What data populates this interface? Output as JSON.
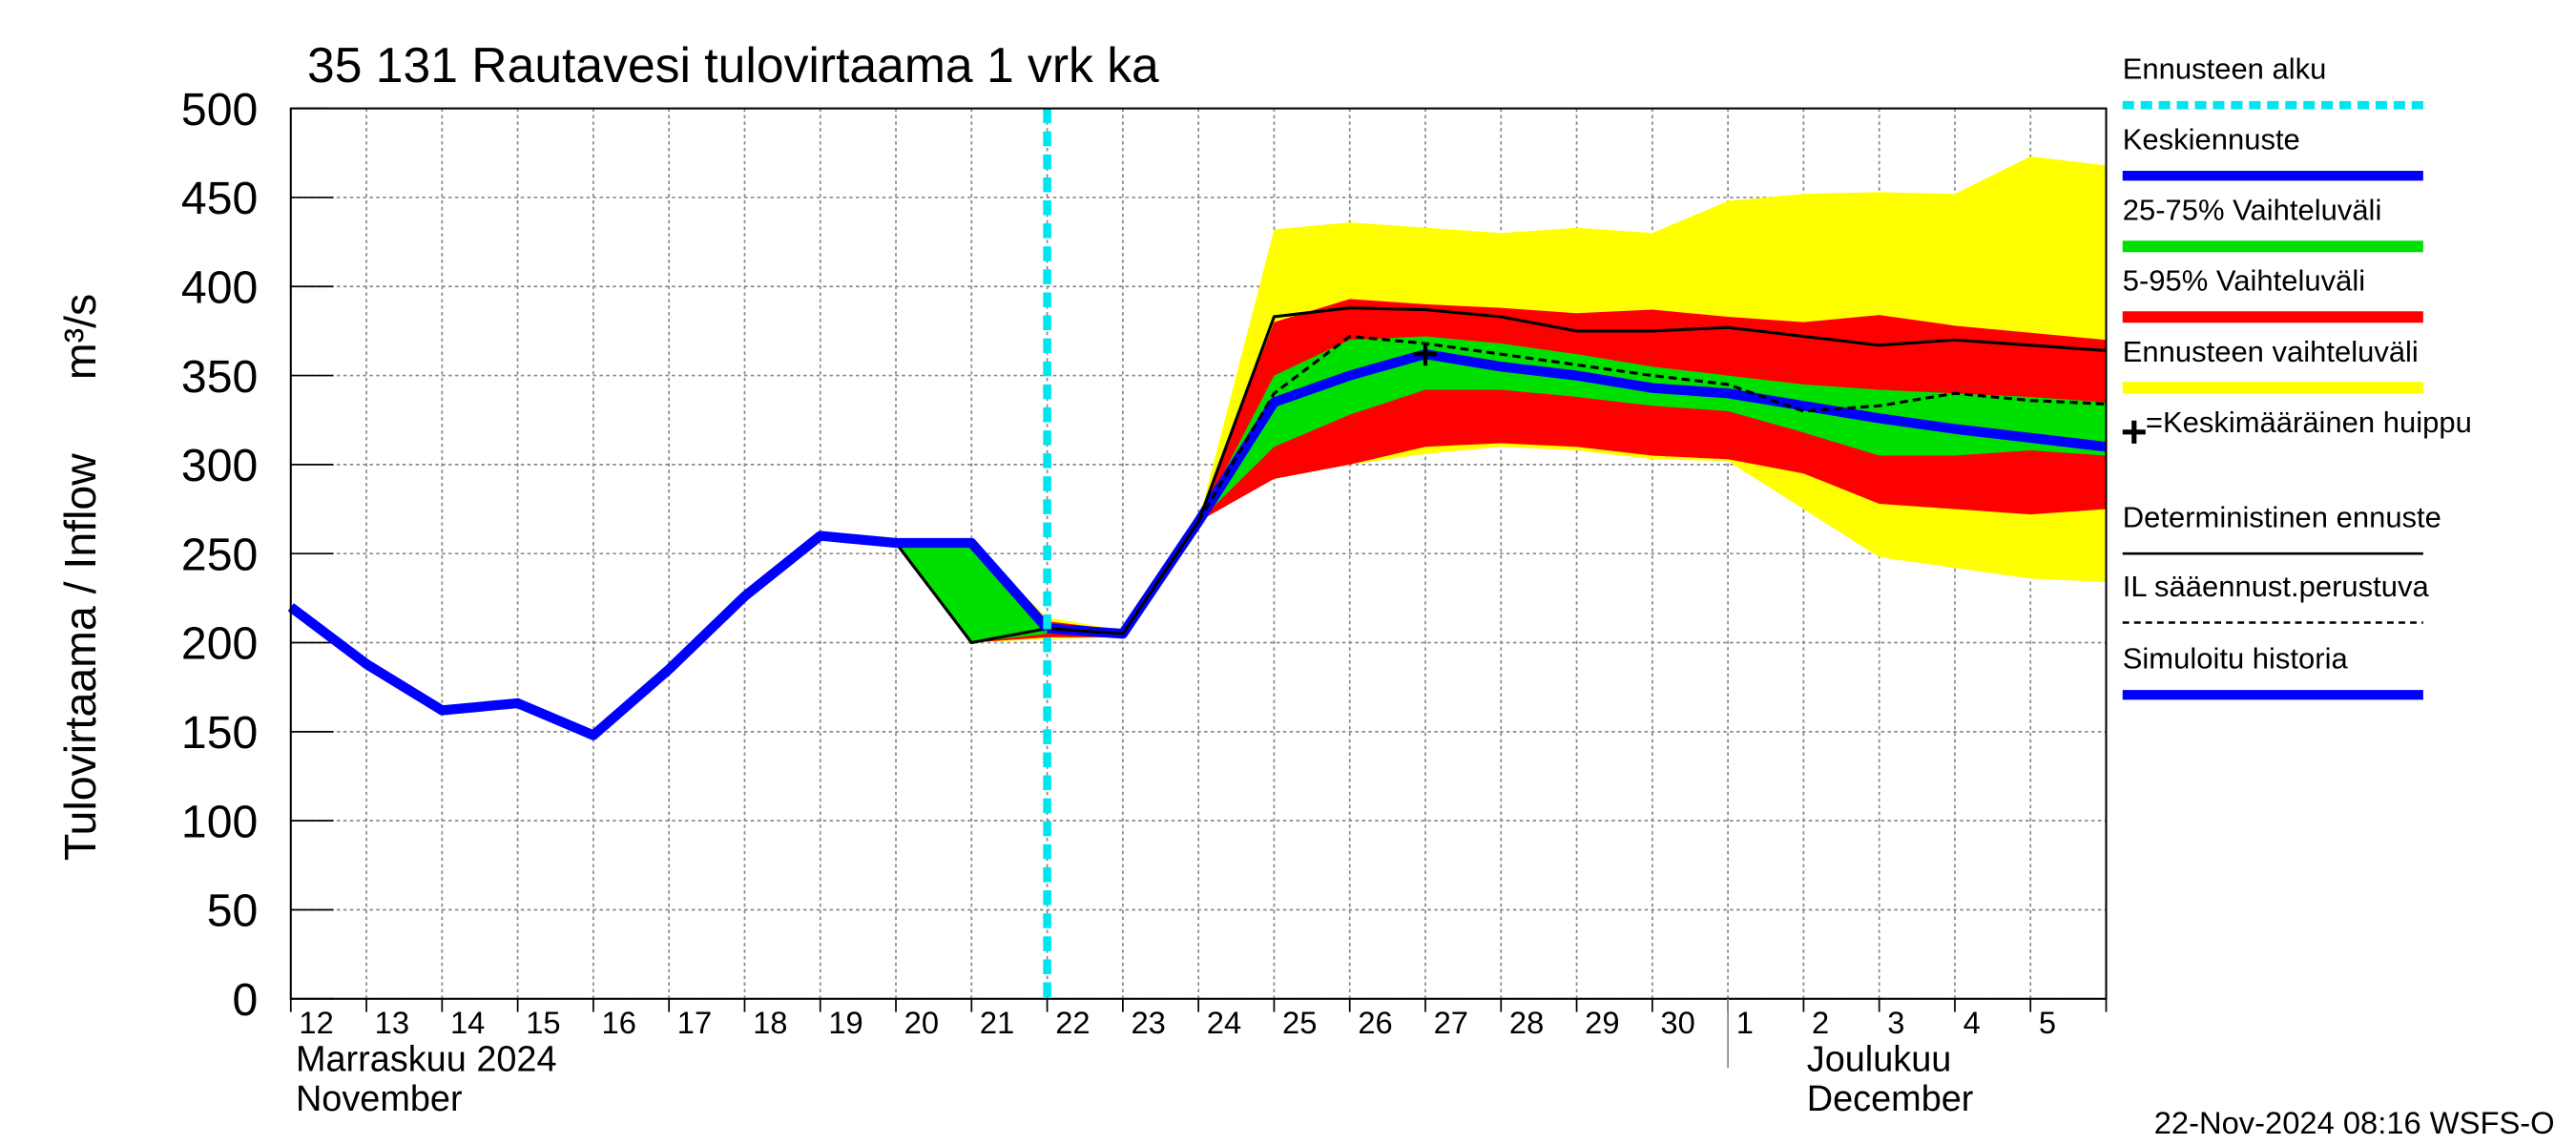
{
  "chart_data": {
    "type": "line",
    "title": "35 131 Rautavesi tulovirtaama 1 vrk ka",
    "y_label": "Tulovirtaama / Inflow",
    "y_unit": "m³/s",
    "categories": [
      "12",
      "13",
      "14",
      "15",
      "16",
      "17",
      "18",
      "19",
      "20",
      "21",
      "22",
      "23",
      "24",
      "25",
      "26",
      "27",
      "28",
      "29",
      "30",
      "1",
      "2",
      "3",
      "4",
      "5",
      null
    ],
    "x_groups": [
      {
        "name": "Marraskuu 2024",
        "name_en": "November",
        "start": 0
      },
      {
        "name": "Joulukuu",
        "name_en": "December",
        "start": 19
      }
    ],
    "ylim": [
      0,
      500
    ],
    "yticks": [
      0,
      50,
      100,
      150,
      200,
      250,
      300,
      350,
      400,
      450,
      500
    ],
    "grid": true,
    "forecast_start": {
      "name": "Ennusteen alku",
      "x": 10,
      "color": "#00e5ee"
    },
    "series": [
      {
        "name": "Keskiennuste",
        "style": "thick",
        "color": "#0000ff",
        "values": [
          null,
          null,
          null,
          null,
          null,
          null,
          null,
          null,
          null,
          null,
          208,
          205,
          268,
          335,
          350,
          362,
          355,
          350,
          343,
          340,
          333,
          326,
          320,
          315,
          310
        ]
      },
      {
        "name": "25-75% Vaihteluväli",
        "style": "band",
        "color": "#00e000",
        "low": [
          null,
          null,
          null,
          null,
          null,
          null,
          null,
          null,
          256,
          200,
          205,
          204,
          268,
          310,
          328,
          342,
          342,
          338,
          333,
          330,
          318,
          305,
          305,
          308,
          305
        ],
        "high": [
          null,
          null,
          null,
          null,
          null,
          null,
          null,
          null,
          256,
          256,
          210,
          206,
          268,
          350,
          370,
          372,
          368,
          362,
          355,
          350,
          345,
          342,
          340,
          338,
          335
        ]
      },
      {
        "name": "5-95% Vaihteluväli",
        "style": "band",
        "color": "#ff0000",
        "low": [
          null,
          null,
          null,
          null,
          null,
          null,
          null,
          null,
          256,
          200,
          203,
          203,
          268,
          292,
          300,
          310,
          312,
          310,
          305,
          303,
          295,
          278,
          275,
          272,
          275
        ],
        "high": [
          null,
          null,
          null,
          null,
          null,
          null,
          null,
          null,
          256,
          256,
          212,
          207,
          268,
          380,
          393,
          390,
          388,
          385,
          387,
          383,
          380,
          384,
          378,
          374,
          370
        ]
      },
      {
        "name": "Ennusteen vaihteluväli",
        "style": "band",
        "color": "#ffff00",
        "low": [
          null,
          null,
          null,
          null,
          null,
          null,
          null,
          null,
          256,
          200,
          202,
          203,
          268,
          292,
          300,
          306,
          310,
          308,
          303,
          302,
          275,
          248,
          242,
          236,
          234
        ],
        "high": [
          null,
          null,
          null,
          null,
          null,
          null,
          null,
          null,
          256,
          256,
          214,
          207,
          268,
          432,
          436,
          433,
          430,
          433,
          430,
          448,
          452,
          453,
          452,
          473,
          468
        ]
      },
      {
        "name": "Deterministinen ennuste",
        "style": "thin",
        "color": "#000000",
        "values": [
          null,
          null,
          null,
          null,
          null,
          null,
          null,
          null,
          256,
          200,
          208,
          205,
          268,
          383,
          388,
          387,
          383,
          375,
          375,
          377,
          372,
          367,
          370,
          367,
          364
        ]
      },
      {
        "name": "IL sääennust.perustuva",
        "style": "dashed",
        "color": "#000000",
        "values": [
          null,
          null,
          null,
          null,
          null,
          null,
          null,
          null,
          null,
          null,
          null,
          null,
          268,
          340,
          372,
          368,
          362,
          356,
          350,
          345,
          330,
          333,
          340,
          336,
          334
        ]
      },
      {
        "name": "Simuloitu historia",
        "style": "thick",
        "color": "#0000ff",
        "values": [
          220,
          188,
          162,
          166,
          148,
          185,
          226,
          260,
          256,
          256,
          208,
          null,
          null,
          null,
          null,
          null,
          null,
          null,
          null,
          null,
          null,
          null,
          null,
          null,
          null
        ]
      }
    ],
    "peak": {
      "name": "=Keskimääräinen huippu",
      "x": 15,
      "value": 362
    },
    "footer": "22-Nov-2024 08:16 WSFS-O"
  }
}
